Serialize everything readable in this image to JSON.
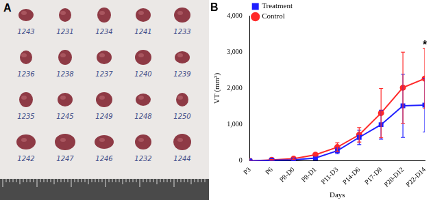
{
  "photo": {
    "label": "A",
    "specimen_labels": [
      [
        "1243",
        "1231",
        "1234",
        "1241",
        "1233"
      ],
      [
        "1236",
        "1238",
        "1237",
        "1240",
        "1239"
      ],
      [
        "1235",
        "1245",
        "1249",
        "1248",
        "1250"
      ],
      [
        "1242",
        "1247",
        "1246",
        "1232",
        "1244"
      ]
    ]
  },
  "chart_data": {
    "type": "line",
    "title": "B",
    "x_label": "Days",
    "y_label": "VT (mm³)",
    "categories": [
      "P3",
      "P6",
      "P8-D0",
      "P8-D1",
      "P11-D3",
      "P14-D6",
      "P17-D9",
      "P20-D12",
      "P22-D14"
    ],
    "series": [
      {
        "name": "Treatment",
        "color": "#1f1fff",
        "marker": "square",
        "values": [
          0,
          20,
          30,
          80,
          280,
          650,
          1000,
          1520,
          1540
        ],
        "errors": [
          0,
          10,
          20,
          40,
          80,
          200,
          400,
          870,
          740
        ]
      },
      {
        "name": "Control",
        "color": "#ff2a2a",
        "marker": "circle",
        "values": [
          0,
          30,
          60,
          170,
          380,
          720,
          1320,
          2020,
          2270
        ],
        "errors": [
          0,
          10,
          20,
          40,
          120,
          200,
          680,
          980,
          830
        ]
      }
    ],
    "annotations": [
      {
        "text": "*",
        "category": "P22-D14"
      }
    ],
    "ylim": [
      0,
      4000
    ],
    "yticks": [
      0,
      1000,
      2000,
      3000,
      4000
    ],
    "grid": false,
    "legend": "upper left"
  }
}
